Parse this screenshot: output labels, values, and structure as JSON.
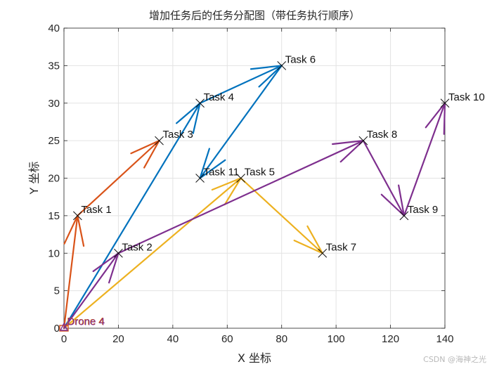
{
  "chart_data": {
    "type": "line",
    "title": "增加任务后的任务分配图（带任务执行顺序）",
    "xlabel": "X 坐标",
    "ylabel": "Y 坐标",
    "xlim": [
      0,
      140
    ],
    "ylim": [
      0,
      40
    ],
    "xticks": [
      0,
      20,
      40,
      60,
      80,
      100,
      120,
      140
    ],
    "yticks": [
      0,
      5,
      10,
      15,
      20,
      25,
      30,
      35,
      40
    ],
    "grid": true,
    "depot": {
      "label": "Drone 4",
      "x": 0,
      "y": 0
    },
    "tasks": [
      {
        "name": "Task 1",
        "x": 5,
        "y": 15
      },
      {
        "name": "Task 2",
        "x": 20,
        "y": 10
      },
      {
        "name": "Task 3",
        "x": 35,
        "y": 25
      },
      {
        "name": "Task 4",
        "x": 50,
        "y": 30
      },
      {
        "name": "Task 5",
        "x": 65,
        "y": 20
      },
      {
        "name": "Task 6",
        "x": 80,
        "y": 35
      },
      {
        "name": "Task 7",
        "x": 95,
        "y": 10
      },
      {
        "name": "Task 8",
        "x": 110,
        "y": 25
      },
      {
        "name": "Task 9",
        "x": 125,
        "y": 15
      },
      {
        "name": "Task 10",
        "x": 140,
        "y": 30
      },
      {
        "name": "Task 11",
        "x": 50,
        "y": 20
      }
    ],
    "routes": [
      {
        "color": "#0072BD",
        "path": [
          [
            0,
            0
          ],
          [
            50,
            30
          ],
          [
            80,
            35
          ],
          [
            50,
            20
          ]
        ]
      },
      {
        "color": "#D95319",
        "path": [
          [
            0,
            0
          ],
          [
            5,
            15
          ],
          [
            35,
            25
          ]
        ]
      },
      {
        "color": "#EDB120",
        "path": [
          [
            0,
            0
          ],
          [
            65,
            20
          ],
          [
            95,
            10
          ]
        ]
      },
      {
        "color": "#7E2F8E",
        "path": [
          [
            0,
            0
          ],
          [
            20,
            10
          ],
          [
            110,
            25
          ],
          [
            125,
            15
          ],
          [
            140,
            30
          ]
        ]
      }
    ]
  },
  "watermark": "CSDN @海神之光"
}
